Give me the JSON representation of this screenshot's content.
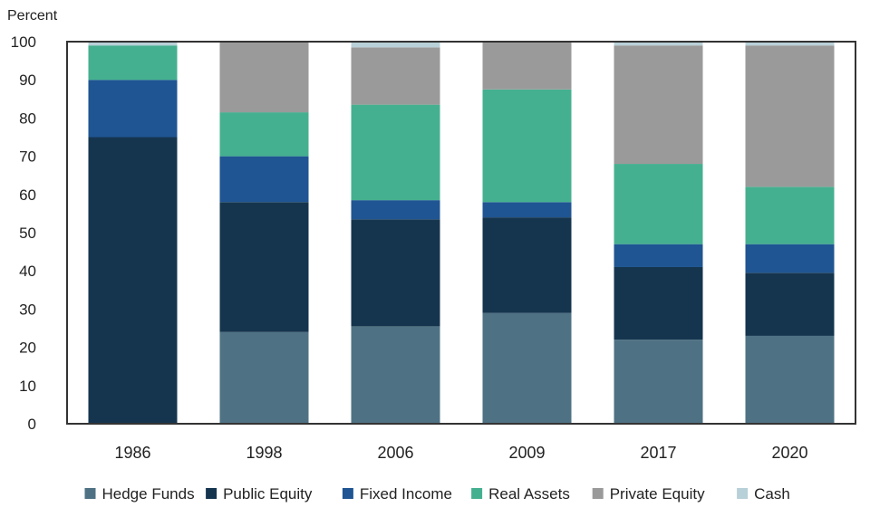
{
  "chart_data": {
    "type": "bar",
    "stacked": true,
    "title": "",
    "xlabel": "",
    "ylabel": "Percent",
    "ylim": [
      0,
      100
    ],
    "yticks": [
      0,
      10,
      20,
      30,
      40,
      50,
      60,
      70,
      80,
      90,
      100
    ],
    "categories": [
      "1986",
      "1998",
      "2006",
      "2009",
      "2017",
      "2020"
    ],
    "legend_position": "bottom",
    "series": [
      {
        "name": "Hedge Funds",
        "color": "#4e7283",
        "values": [
          0,
          24,
          25.5,
          29,
          22,
          23
        ]
      },
      {
        "name": "Public Equity",
        "color": "#15354f",
        "values": [
          75,
          34,
          28,
          25,
          19,
          16.5
        ]
      },
      {
        "name": "Fixed Income",
        "color": "#1f5592",
        "values": [
          15,
          12,
          5,
          4,
          6,
          7.5
        ]
      },
      {
        "name": "Real Assets",
        "color": "#45b08f",
        "values": [
          9,
          11.5,
          25,
          29.5,
          21,
          15
        ]
      },
      {
        "name": "Private Equity",
        "color": "#9a9a9a",
        "values": [
          0,
          18.5,
          15,
          12.5,
          31,
          37
        ]
      },
      {
        "name": "Cash",
        "color": "#b8d0d8",
        "values": [
          1,
          0,
          1.5,
          0,
          1,
          1
        ]
      }
    ]
  }
}
